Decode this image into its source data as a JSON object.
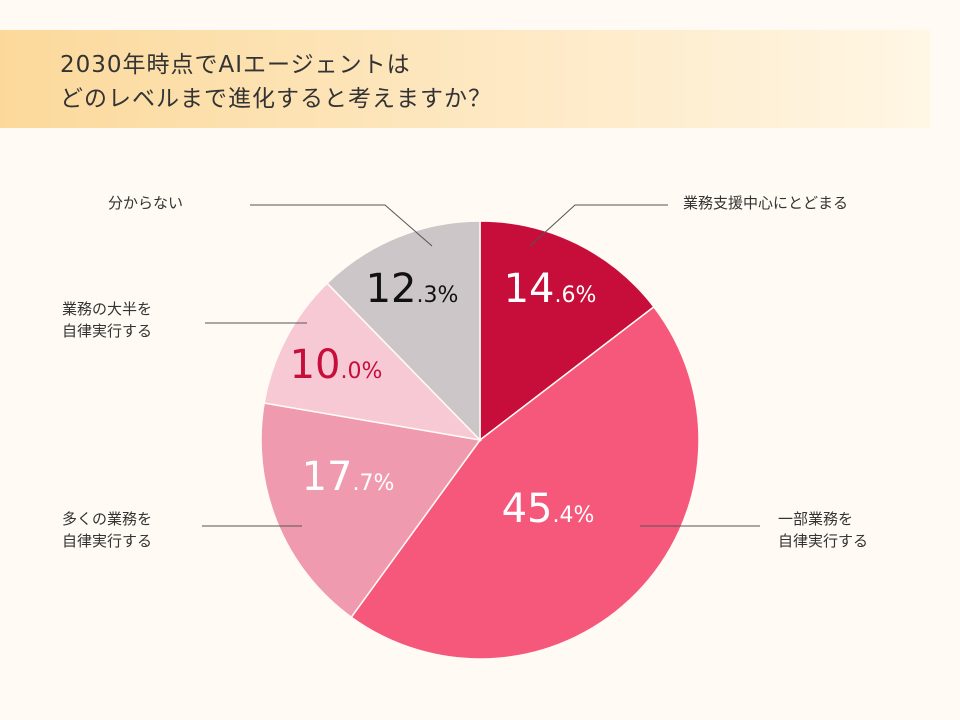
{
  "title": {
    "line1": "2030年時点でAIエージェントは",
    "line2": "どのレベルまで進化すると考えますか？"
  },
  "chart_data": {
    "type": "pie",
    "unit": "%",
    "slices": [
      {
        "label": "業務支援中心にとどまる",
        "value": 14.6,
        "color": "#c70d3a",
        "text_color": "#ffffff"
      },
      {
        "label": "一部業務を\n自律実行する",
        "value": 45.4,
        "color": "#f5587b",
        "text_color": "#ffffff"
      },
      {
        "label": "多くの業務を\n自律実行する",
        "value": 17.7,
        "color": "#f09ab0",
        "text_color": "#ffffff"
      },
      {
        "label": "業務の大半を\n自律実行する",
        "value": 10.0,
        "color": "#f7c9d5",
        "text_color": "#c70d3a"
      },
      {
        "label": "分からない",
        "value": 12.3,
        "color": "#ccc6c8",
        "text_color": "#111111"
      }
    ]
  }
}
